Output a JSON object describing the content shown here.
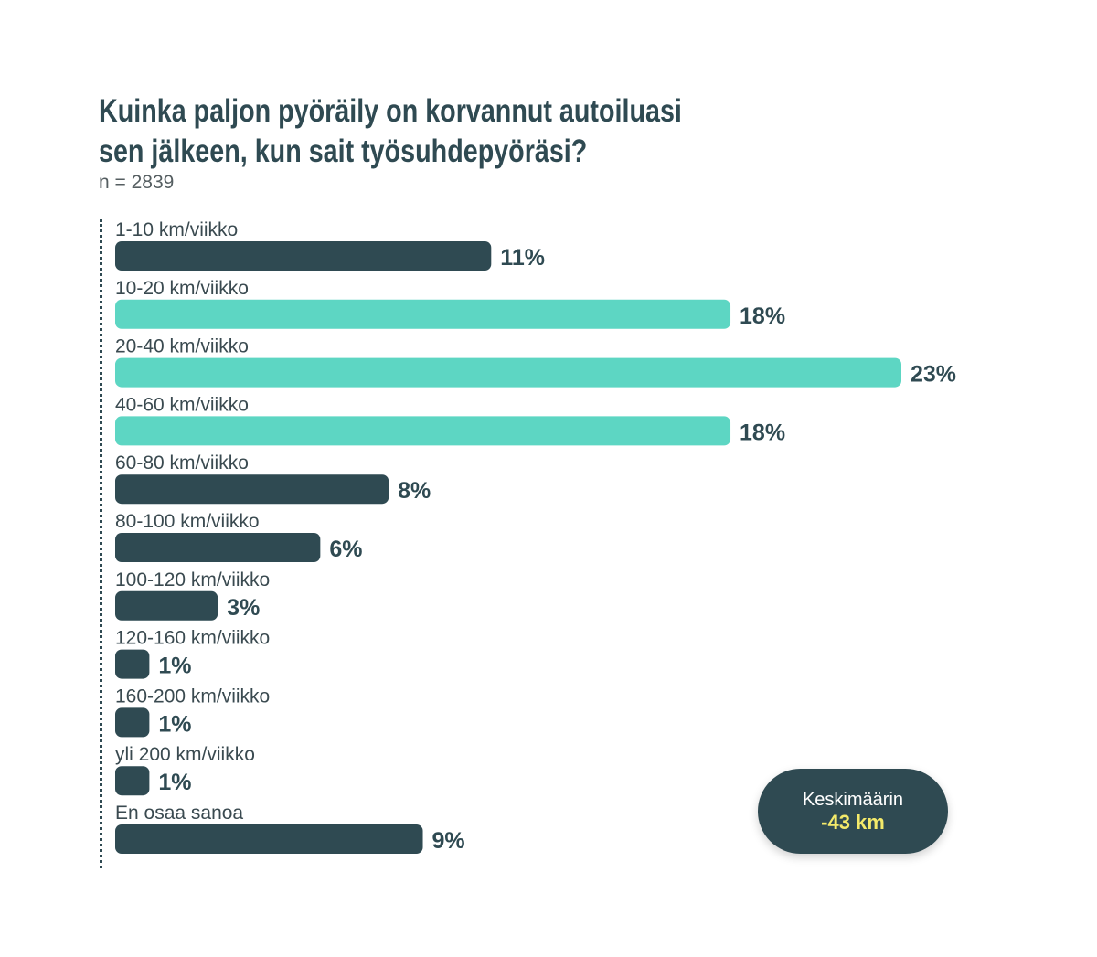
{
  "chart_data": {
    "type": "bar",
    "orientation": "horizontal",
    "title": "Kuinka paljon pyöräily on korvannut autoiluasi sen jälkeen, kun sait työsuhdepyöräsi?",
    "title_lines": [
      "Kuinka paljon pyöräily on korvannut autoiluasi",
      "sen jälkeen, kun sait työsuhdepyöräsi?"
    ],
    "subtitle": "n = 2839",
    "categories": [
      "1-10 km/viikko",
      "10-20 km/viikko",
      "20-40 km/viikko",
      "40-60 km/viikko",
      "60-80 km/viikko",
      "80-100 km/viikko",
      "100-120 km/viikko",
      "120-160 km/viikko",
      "160-200 km/viikko",
      "yli 200 km/viikko",
      "En osaa sanoa"
    ],
    "values": [
      11,
      18,
      23,
      18,
      8,
      6,
      3,
      1,
      1,
      1,
      9
    ],
    "value_labels": [
      "11%",
      "18%",
      "23%",
      "18%",
      "8%",
      "6%",
      "3%",
      "1%",
      "1%",
      "1%",
      "9%"
    ],
    "highlighted": [
      false,
      true,
      true,
      true,
      false,
      false,
      false,
      false,
      false,
      false,
      false
    ],
    "unit": "%",
    "xlim": [
      0,
      23
    ],
    "grid": false,
    "colors": {
      "default": "#2f4a52",
      "highlight": "#5dd6c3"
    }
  },
  "average": {
    "label": "Keskimäärin",
    "value": "-43 km",
    "label_color": "#ffffff",
    "value_color": "#f4ea6a",
    "background": "#2f4a52"
  }
}
